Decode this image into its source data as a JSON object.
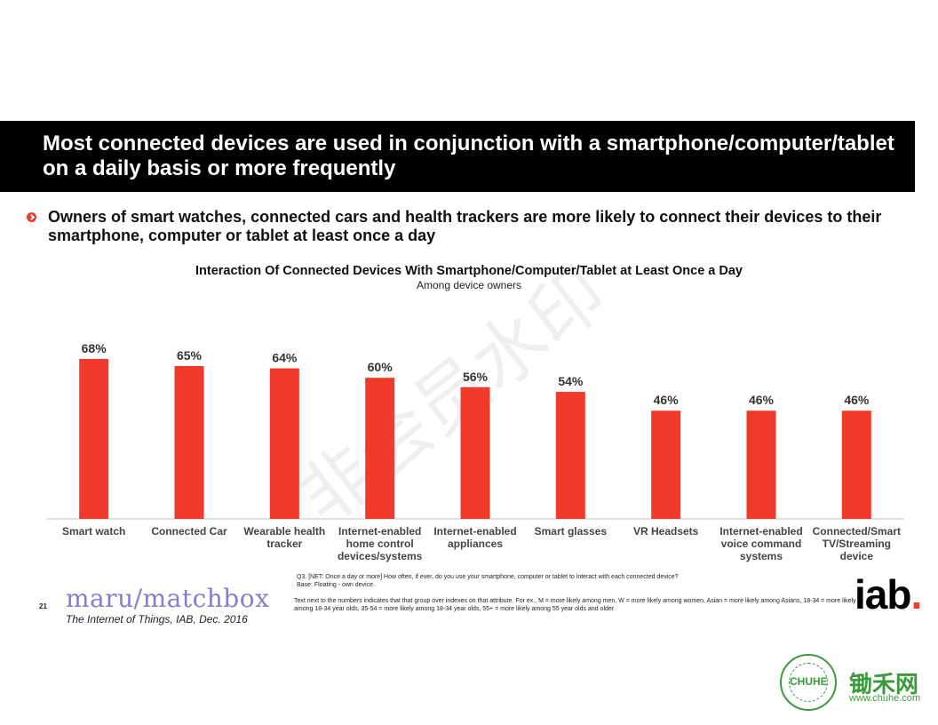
{
  "slide": {
    "title": "Most connected devices are used in conjunction with a smartphone/computer/tablet on a daily basis or more frequently",
    "bullet": "Owners of smart watches, connected cars and health trackers are more likely to connect their devices to their smartphone, computer or tablet at least once a day",
    "page_number": "21",
    "source": "The Internet of Things, IAB, Dec. 2016",
    "footnote_question": "Q3. [NET: Once a day or more] How often, if ever, do you use your smartphone, computer or tablet to interact with each connected device?",
    "footnote_base": "Base: Floating - own device.",
    "footnote_note": "Text next to the numbers indicates that that group over indexes on that attribute.  For ex., M = more likely among men, W = more likely among women, Asian = more likely among Asians, 18-34 = more likely among 18-34 year olds, 35-54 = more likely among 18-34 year olds, 55+ = more likely among 55 year olds and older",
    "logo_left": "maru/matchbox",
    "logo_right_text": "iab",
    "logo_right_dot": ".",
    "watermark": "非会员水印",
    "brand_cn": "锄禾网",
    "brand_url": "www.chuhe.com",
    "stamp_text": "CHUHE"
  },
  "colors": {
    "bar": "#f03a2c",
    "title_band": "#000000",
    "axis": "#bfbfbf"
  },
  "chart_data": {
    "type": "bar",
    "title": "Interaction Of Connected Devices With Smartphone/Computer/Tablet at Least Once a Day",
    "subtitle": "Among device owners",
    "categories": [
      "Smart watch",
      "Connected Car",
      "Wearable health tracker",
      "Internet-enabled home control devices/systems",
      "Internet-enabled appliances",
      "Smart glasses",
      "VR Headsets",
      "Internet-enabled voice command systems",
      "Connected/Smart TV/Streaming device"
    ],
    "category_lines": [
      [
        "Smart watch"
      ],
      [
        "Connected Car"
      ],
      [
        "Wearable health",
        "tracker"
      ],
      [
        "Internet-enabled",
        "home control",
        "devices/systems"
      ],
      [
        "Internet-enabled",
        "appliances"
      ],
      [
        "Smart glasses"
      ],
      [
        "VR Headsets"
      ],
      [
        "Internet-enabled",
        "voice command",
        "systems"
      ],
      [
        "Connected/Smart",
        "TV/Streaming",
        "device"
      ]
    ],
    "values": [
      68,
      65,
      64,
      60,
      56,
      54,
      46,
      46,
      46
    ],
    "value_labels": [
      "68%",
      "65%",
      "64%",
      "60%",
      "56%",
      "54%",
      "46%",
      "46%",
      "46%"
    ],
    "ylim": [
      0,
      68
    ],
    "grid": false,
    "legend": "none"
  }
}
